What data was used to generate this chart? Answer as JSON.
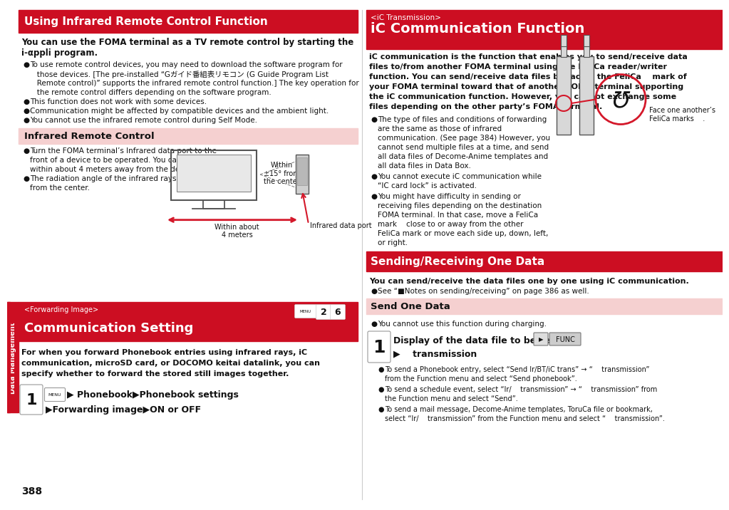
{
  "page_number": "388",
  "bg_color": "#ffffff",
  "red_color": "#d4182a",
  "light_red_bg": "#f5d0d0",
  "dark_red_bg": "#cc0e22",
  "section1_title": "Using Infrared Remote Control Function",
  "section1_sub1": "You can use the FOMA terminal as a TV remote control by starting the",
  "section1_sub2": "i-αppli program.",
  "section1_bullets": [
    "To use remote control devices, you may need to download the software program for\n    those devices. [The pre-installed “Gガイド番組表リモコン (G Guide Program List\n    Remote control)” supports the infrared remote control function.] The key operation for\n    the remote control differs depending on the software program.",
    "This function does not work with some devices.",
    "Communication might be affected by compatible devices and the ambient light.",
    "You cannot use the infrared remote control during Self Mode."
  ],
  "subsection1_title": "Infrared Remote Control",
  "sub1_bul1_lines": [
    "Turn the FOMA terminal’s Infrared data port to the",
    "front of a device to be operated. You can operate",
    "within about 4 meters away from the device."
  ],
  "sub1_bul2_lines": [
    "The radiation angle of the infrared rays is within ±15°",
    "from the center."
  ],
  "diag_label_within": "Within\n±15° from\nthe center",
  "diag_label_4m": "Within about\n4 meters",
  "diag_label_port": "Infrared data port",
  "section2_tag": "<Forwarding Image>",
  "section2_title": "Communication Setting",
  "section2_body_lines": [
    "For when you forward Phonebook entries using infrared rays, iC",
    "communication, microSD card, or DOCOMO keitai datalink, you can",
    "specify whether to forward the stored still images together."
  ],
  "section2_step_line1": "▶ Phonebook▶Phonebook settings",
  "section2_step_line2": "▶Forwarding image▶ON or OFF",
  "right_tag": "<iC Transmission>",
  "right_title": "iC Communication Function",
  "right_body_lines": [
    "iC communication is the function that enables you to send/receive data",
    "files to/from another FOMA terminal using the FeliCa reader/writer",
    "function. You can send/receive data files by facing the FeliCa    mark of",
    "your FOMA terminal toward that of another FOMA terminal supporting",
    "the iC communication function. However, you cannot exchange some",
    "files depending on the other party’s FOMA terminal."
  ],
  "right_bul1_lines": [
    "The type of files and conditions of forwarding",
    "are the same as those of infrared",
    "communication. (See page 384) However, you",
    "cannot send multiple files at a time, and send",
    "all data files of Decome-Anime templates and",
    "all data files in Data Box."
  ],
  "right_bul2_lines": [
    "You cannot execute iC communication while",
    "“IC card lock” is activated."
  ],
  "right_bul3_lines": [
    "You might have difficulty in sending or",
    "receiving files depending on the destination",
    "FOMA terminal. In that case, move a FeliCa",
    "mark    close to or away from the other",
    "FeliCa mark or move each side up, down, left,",
    "or right."
  ],
  "right_diag_label": "Face one another’s\nFeliCa marks    .",
  "send_title": "Sending/Receiving One Data",
  "send_body": "You can send/receive the data files one by one using iC communication.",
  "send_bul": "See “■Notes on sending/receiving” on page 386 as well.",
  "sod_title": "Send One Data",
  "sod_bul": "You cannot use this function during charging.",
  "step1_line1": "Display of the data file to be sent",
  "step1_line2": "▶    transmission",
  "step1_bul1_l1": "To send a Phonebook entry, select “Send Ir/BT/iC trans” → “    transmission”",
  "step1_bul1_l2": "from the Function menu and select “Send phonebook”.",
  "step1_bul2_l1": "To send a schedule event, select “Ir/    transmission” → “    transmission” from",
  "step1_bul2_l2": "the Function menu and select “Send”.",
  "step1_bul3_l1": "To send a mail message, Decome-Anime templates, ToruCa file or bookmark,",
  "step1_bul3_l2": "select “Ir/    transmission” from the Function menu and select “    transmission”.",
  "sidebar_text": "Data Management",
  "sidebar_color": "#cc0e22"
}
